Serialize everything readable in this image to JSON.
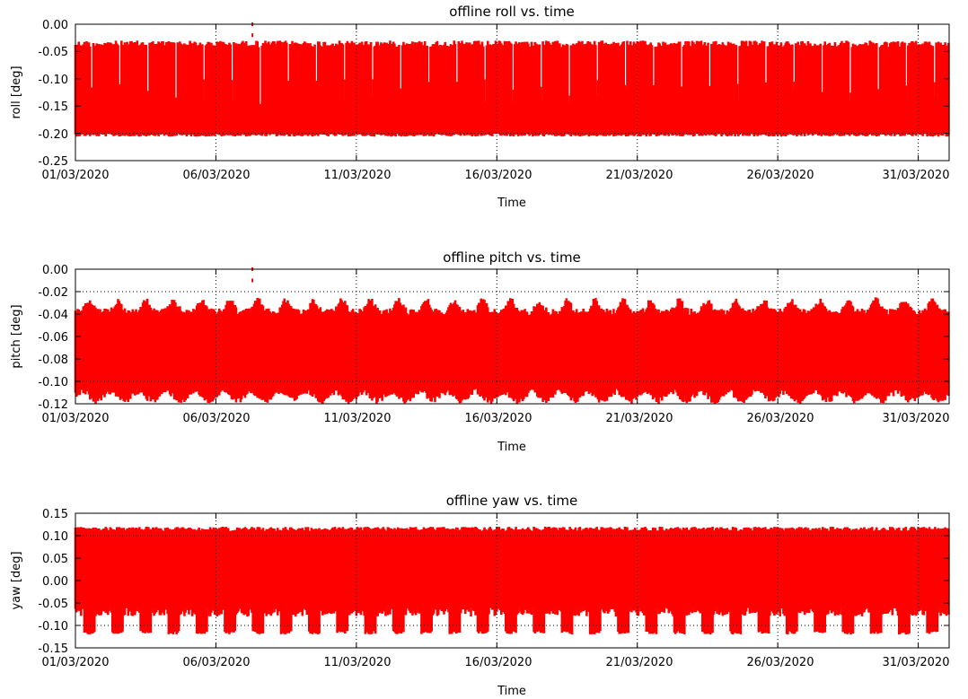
{
  "colors": {
    "series": "#ff0000",
    "axis": "#000000",
    "background": "#ffffff"
  },
  "chart_data": [
    {
      "type": "line",
      "title": "offline roll vs. time",
      "xlabel": "Time",
      "ylabel": "roll [deg]",
      "x_tick_labels": [
        "01/03/2020",
        "06/03/2020",
        "11/03/2020",
        "16/03/2020",
        "21/03/2020",
        "26/03/2020",
        "31/03/2020"
      ],
      "x_tick_days": [
        0,
        5,
        10,
        15,
        20,
        25,
        30
      ],
      "xlim_days": [
        0,
        31.1
      ],
      "ylim": [
        -0.25,
        0.0
      ],
      "y_ticks": [
        0.0,
        -0.05,
        -0.1,
        -0.15,
        -0.2,
        -0.25
      ],
      "y_tick_labels": [
        "0.00",
        "-0.05",
        "-0.10",
        "-0.15",
        "-0.20",
        "-0.25"
      ],
      "grid": true,
      "gridlines_y": [
        -0.2
      ],
      "gridlines_x_days": [
        5,
        10,
        15,
        20,
        25,
        30
      ],
      "series": [
        {
          "typical_max": -0.03,
          "typical_min": -0.2,
          "extreme_min": -0.21,
          "oscillation_period_days": 1.0
        }
      ],
      "annotations": [
        {
          "note": "isolated points near 0.00 around 07/03/2020",
          "x_day": 6.3,
          "values": [
            0.0,
            -0.02
          ]
        }
      ]
    },
    {
      "type": "line",
      "title": "offline pitch vs. time",
      "xlabel": "Time",
      "ylabel": "pitch [deg]",
      "x_tick_labels": [
        "01/03/2020",
        "06/03/2020",
        "11/03/2020",
        "16/03/2020",
        "21/03/2020",
        "26/03/2020",
        "31/03/2020"
      ],
      "x_tick_days": [
        0,
        5,
        10,
        15,
        20,
        25,
        30
      ],
      "xlim_days": [
        0,
        31.1
      ],
      "ylim": [
        -0.12,
        0.0
      ],
      "y_ticks": [
        0.0,
        -0.02,
        -0.04,
        -0.06,
        -0.08,
        -0.1,
        -0.12
      ],
      "y_tick_labels": [
        "0.00",
        "-0.02",
        "-0.04",
        "-0.06",
        "-0.08",
        "-0.10",
        "-0.12"
      ],
      "grid": true,
      "gridlines_y": [
        -0.02,
        -0.1
      ],
      "gridlines_x_days": [
        5,
        10,
        15,
        20,
        25,
        30
      ],
      "series": [
        {
          "typical_max": -0.035,
          "peak_max": -0.025,
          "typical_min": -0.11,
          "extreme_min": -0.118,
          "oscillation_period_days": 1.0
        }
      ],
      "annotations": [
        {
          "note": "isolated points near 0.00 around 07/03/2020",
          "x_day": 6.3,
          "values": [
            0.0,
            -0.01
          ]
        }
      ]
    },
    {
      "type": "line",
      "title": "offline yaw vs. time",
      "xlabel": "Time",
      "ylabel": "yaw [deg]",
      "x_tick_labels": [
        "01/03/2020",
        "06/03/2020",
        "11/03/2020",
        "16/03/2020",
        "21/03/2020",
        "26/03/2020",
        "31/03/2020"
      ],
      "x_tick_days": [
        0,
        5,
        10,
        15,
        20,
        25,
        30
      ],
      "xlim_days": [
        0,
        31.1
      ],
      "ylim": [
        -0.15,
        0.15
      ],
      "y_ticks": [
        0.15,
        0.1,
        0.05,
        0.0,
        -0.05,
        -0.1,
        -0.15
      ],
      "y_tick_labels": [
        "0.15",
        "0.10",
        "0.05",
        "0.00",
        "-0.05",
        "-0.10",
        "-0.15"
      ],
      "grid": true,
      "gridlines_y": [
        0.1,
        -0.1
      ],
      "gridlines_x_days": [
        5,
        10,
        15,
        20,
        25,
        30
      ],
      "series": [
        {
          "typical_max": 0.12,
          "typical_min_daily": -0.12,
          "quiet_min": -0.06,
          "oscillation_period_days": 1.0
        }
      ],
      "annotations": []
    }
  ]
}
